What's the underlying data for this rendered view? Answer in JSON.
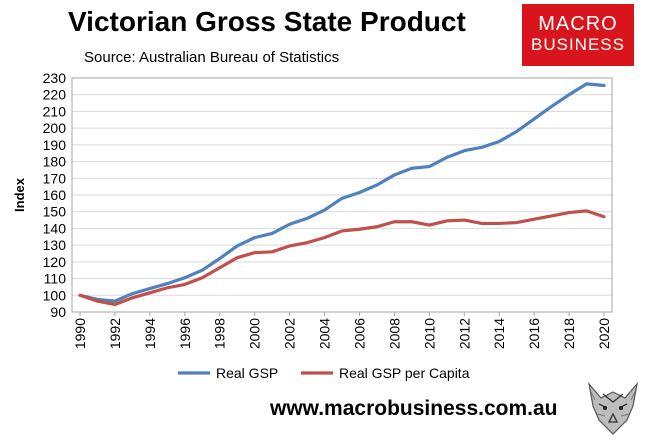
{
  "header": {
    "title": "Victorian Gross State Product",
    "subtitle": "Source: Australian Bureau of Statistics"
  },
  "logo": {
    "line1": "MACRO",
    "line2": "BUSINESS",
    "color": "#d8141d"
  },
  "footer": {
    "website": "www.macrobusiness.com.au"
  },
  "chart_data": {
    "type": "line",
    "title": "",
    "xlabel": "",
    "ylabel": "Index",
    "ylim": [
      90,
      230
    ],
    "yticks": [
      90,
      100,
      110,
      120,
      130,
      140,
      150,
      160,
      170,
      180,
      190,
      200,
      210,
      220,
      230
    ],
    "xlim": [
      1990,
      2020
    ],
    "xticks": [
      1990,
      1992,
      1994,
      1996,
      1998,
      2000,
      2002,
      2004,
      2006,
      2008,
      2010,
      2012,
      2014,
      2016,
      2018,
      2020
    ],
    "x": [
      1990,
      1991,
      1992,
      1993,
      1994,
      1995,
      1996,
      1997,
      1998,
      1999,
      2000,
      2001,
      2002,
      2003,
      2004,
      2005,
      2006,
      2007,
      2008,
      2009,
      2010,
      2011,
      2012,
      2013,
      2014,
      2015,
      2016,
      2017,
      2018,
      2019,
      2020
    ],
    "grid": "horizontal",
    "legend_position": "bottom",
    "series": [
      {
        "name": "Real GSP",
        "color": "#4f81bd",
        "values": [
          100.0,
          97.5,
          96.5,
          101.0,
          104.0,
          107.0,
          110.5,
          115.0,
          122.0,
          129.5,
          134.5,
          137.0,
          142.5,
          146.0,
          151.0,
          158.0,
          161.5,
          166.0,
          172.0,
          176.0,
          177.0,
          182.5,
          186.5,
          188.5,
          192.0,
          198.0,
          205.5,
          213.0,
          220.0,
          226.5,
          225.5
        ]
      },
      {
        "name": "Real GSP per Capita",
        "color": "#c0504d",
        "values": [
          100.0,
          96.5,
          94.5,
          98.5,
          101.5,
          104.5,
          106.5,
          110.5,
          116.5,
          122.5,
          125.5,
          126.0,
          129.5,
          131.5,
          134.5,
          138.5,
          139.5,
          141.0,
          144.0,
          144.0,
          142.0,
          144.5,
          145.0,
          143.0,
          143.0,
          143.5,
          145.5,
          147.5,
          149.5,
          150.5,
          147.0
        ]
      }
    ]
  }
}
